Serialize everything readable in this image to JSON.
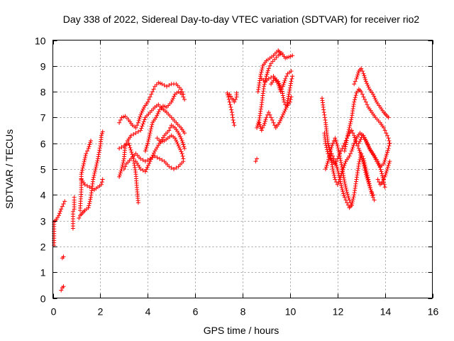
{
  "chart_data": {
    "type": "scatter",
    "title": "Day 338 of 2022, Sidereal Day-to-day VTEC variation (SDTVAR) for receiver rio2",
    "xlabel": "GPS time / hours",
    "ylabel": "SDTVAR / TECUs",
    "xlim": [
      0,
      16
    ],
    "ylim": [
      0,
      10
    ],
    "xticks": [
      0,
      2,
      4,
      6,
      8,
      10,
      12,
      14,
      16
    ],
    "yticks": [
      0,
      1,
      2,
      3,
      4,
      5,
      6,
      7,
      8,
      9,
      10
    ],
    "grid": true,
    "marker": "+",
    "color": "#ff0000",
    "tracks": [
      [
        [
          0.05,
          2.05
        ],
        [
          0.05,
          2.95
        ],
        [
          0.15,
          3.05
        ],
        [
          0.25,
          3.2
        ],
        [
          0.35,
          3.45
        ],
        [
          0.45,
          3.65
        ],
        [
          0.5,
          3.75
        ]
      ],
      [
        [
          0.35,
          0.3
        ],
        [
          0.4,
          0.4
        ],
        [
          0.45,
          0.45
        ]
      ],
      [
        [
          0.4,
          1.55
        ],
        [
          0.45,
          1.6
        ]
      ],
      [
        [
          0.85,
          2.7
        ],
        [
          0.85,
          3.35
        ],
        [
          0.9,
          3.45
        ],
        [
          0.9,
          3.8
        ],
        [
          0.9,
          3.9
        ]
      ],
      [
        [
          1.1,
          3.1
        ],
        [
          1.15,
          3.2
        ],
        [
          1.25,
          3.3
        ],
        [
          1.35,
          3.4
        ],
        [
          1.5,
          3.5
        ],
        [
          1.6,
          3.9
        ],
        [
          1.7,
          4.6
        ],
        [
          1.8,
          5.0
        ],
        [
          1.9,
          5.4
        ],
        [
          2.0,
          5.9
        ],
        [
          2.05,
          6.3
        ],
        [
          2.1,
          6.45
        ]
      ],
      [
        [
          1.15,
          3.4
        ],
        [
          1.2,
          4.2
        ],
        [
          1.2,
          4.8
        ],
        [
          1.3,
          5.2
        ],
        [
          1.4,
          5.6
        ],
        [
          1.5,
          5.8
        ],
        [
          1.6,
          6.1
        ]
      ],
      [
        [
          1.2,
          4.6
        ],
        [
          1.35,
          4.4
        ],
        [
          1.55,
          4.3
        ],
        [
          1.75,
          4.2
        ],
        [
          1.9,
          4.3
        ],
        [
          2.05,
          4.4
        ],
        [
          2.1,
          4.6
        ]
      ],
      [
        [
          2.8,
          4.7
        ],
        [
          2.9,
          5.0
        ],
        [
          3.0,
          5.4
        ],
        [
          3.05,
          5.9
        ],
        [
          3.15,
          6.1
        ],
        [
          3.3,
          6.3
        ],
        [
          3.5,
          6.4
        ],
        [
          3.7,
          6.5
        ],
        [
          3.9,
          7.0
        ],
        [
          4.1,
          7.2
        ],
        [
          4.3,
          7.4
        ],
        [
          4.45,
          7.5
        ],
        [
          4.6,
          7.35
        ],
        [
          4.8,
          7.2
        ],
        [
          5.0,
          7.0
        ],
        [
          5.2,
          6.8
        ],
        [
          5.4,
          6.6
        ],
        [
          5.55,
          6.4
        ]
      ],
      [
        [
          2.8,
          5.8
        ],
        [
          3.0,
          5.9
        ],
        [
          3.2,
          6.0
        ],
        [
          3.4,
          5.4
        ],
        [
          3.5,
          4.8
        ],
        [
          3.55,
          4.2
        ],
        [
          3.6,
          3.7
        ]
      ],
      [
        [
          2.8,
          6.8
        ],
        [
          2.9,
          7.0
        ],
        [
          3.05,
          7.05
        ],
        [
          3.2,
          6.9
        ],
        [
          3.35,
          6.7
        ],
        [
          3.5,
          6.6
        ],
        [
          3.6,
          6.8
        ],
        [
          3.7,
          7.1
        ],
        [
          3.85,
          7.4
        ],
        [
          4.0,
          7.6
        ],
        [
          4.1,
          7.8
        ],
        [
          4.2,
          8.0
        ],
        [
          4.3,
          8.2
        ],
        [
          4.45,
          8.35
        ],
        [
          4.6,
          8.3
        ],
        [
          4.8,
          8.2
        ],
        [
          5.0,
          8.3
        ],
        [
          5.2,
          8.3
        ],
        [
          5.4,
          8.1
        ],
        [
          5.5,
          7.9
        ]
      ],
      [
        [
          3.0,
          5.0
        ],
        [
          3.1,
          5.2
        ],
        [
          3.3,
          5.4
        ],
        [
          3.5,
          5.6
        ],
        [
          3.7,
          5.4
        ],
        [
          3.9,
          5.3
        ],
        [
          4.1,
          5.4
        ],
        [
          4.3,
          5.5
        ],
        [
          4.5,
          5.4
        ],
        [
          4.7,
          5.3
        ],
        [
          4.9,
          5.1
        ],
        [
          5.1,
          5.0
        ],
        [
          5.3,
          5.1
        ],
        [
          5.5,
          5.3
        ]
      ],
      [
        [
          3.5,
          5.3
        ],
        [
          3.7,
          5.0
        ],
        [
          3.9,
          4.9
        ],
        [
          4.1,
          5.3
        ],
        [
          4.3,
          5.7
        ],
        [
          4.5,
          6.0
        ],
        [
          4.7,
          6.3
        ],
        [
          4.9,
          6.5
        ],
        [
          5.0,
          6.7
        ],
        [
          5.15,
          6.6
        ],
        [
          5.3,
          6.4
        ],
        [
          5.45,
          6.1
        ],
        [
          5.55,
          5.8
        ]
      ],
      [
        [
          3.9,
          5.7
        ],
        [
          4.0,
          6.0
        ],
        [
          4.1,
          6.4
        ],
        [
          4.2,
          6.8
        ],
        [
          4.35,
          7.0
        ],
        [
          4.5,
          7.3
        ],
        [
          4.65,
          7.45
        ],
        [
          4.8,
          7.4
        ],
        [
          5.0,
          7.6
        ],
        [
          5.15,
          7.9
        ],
        [
          5.3,
          8.0
        ],
        [
          5.45,
          7.9
        ],
        [
          5.55,
          7.7
        ]
      ],
      [
        [
          4.4,
          6.2
        ],
        [
          4.55,
          6.05
        ],
        [
          4.7,
          6.1
        ],
        [
          4.85,
          6.2
        ],
        [
          5.0,
          6.3
        ],
        [
          5.15,
          6.2
        ],
        [
          5.3,
          5.9
        ],
        [
          5.45,
          5.6
        ],
        [
          5.5,
          5.4
        ]
      ],
      [
        [
          7.35,
          7.95
        ],
        [
          7.4,
          7.8
        ],
        [
          7.45,
          7.6
        ],
        [
          7.5,
          7.4
        ],
        [
          7.55,
          7.2
        ],
        [
          7.6,
          6.9
        ],
        [
          7.65,
          6.7
        ]
      ],
      [
        [
          7.45,
          7.9
        ],
        [
          7.55,
          7.75
        ],
        [
          7.65,
          7.6
        ],
        [
          7.75,
          7.8
        ],
        [
          7.75,
          7.95
        ]
      ],
      [
        [
          8.55,
          5.3
        ],
        [
          8.6,
          5.4
        ]
      ],
      [
        [
          8.6,
          6.6
        ],
        [
          8.7,
          6.9
        ],
        [
          8.8,
          7.5
        ],
        [
          8.9,
          8.2
        ],
        [
          9.0,
          8.6
        ],
        [
          9.1,
          8.9
        ],
        [
          9.2,
          9.1
        ],
        [
          9.35,
          9.25
        ],
        [
          9.5,
          9.4
        ],
        [
          9.65,
          9.5
        ],
        [
          9.8,
          9.3
        ],
        [
          9.95,
          9.35
        ],
        [
          10.1,
          9.4
        ]
      ],
      [
        [
          8.65,
          8.0
        ],
        [
          8.75,
          8.6
        ],
        [
          8.85,
          9.0
        ],
        [
          9.0,
          9.2
        ],
        [
          9.15,
          9.3
        ],
        [
          9.3,
          9.4
        ],
        [
          9.5,
          9.6
        ],
        [
          9.6,
          9.5
        ]
      ],
      [
        [
          8.7,
          6.8
        ],
        [
          8.8,
          6.5
        ],
        [
          8.9,
          6.7
        ],
        [
          9.0,
          7.0
        ],
        [
          9.1,
          7.2
        ],
        [
          9.2,
          7.0
        ],
        [
          9.3,
          6.8
        ],
        [
          9.4,
          6.6
        ],
        [
          9.55,
          6.8
        ],
        [
          9.7,
          7.1
        ],
        [
          9.85,
          7.4
        ],
        [
          10.0,
          7.6
        ],
        [
          10.05,
          7.8
        ]
      ],
      [
        [
          8.8,
          8.5
        ],
        [
          8.95,
          8.4
        ],
        [
          9.1,
          8.5
        ],
        [
          9.3,
          8.6
        ],
        [
          9.5,
          8.4
        ],
        [
          9.65,
          8.1
        ],
        [
          9.75,
          7.6
        ],
        [
          9.85,
          7.4
        ],
        [
          9.95,
          7.9
        ],
        [
          10.05,
          8.4
        ],
        [
          10.1,
          8.6
        ]
      ],
      [
        [
          9.2,
          8.3
        ],
        [
          9.35,
          8.5
        ],
        [
          9.5,
          8.3
        ],
        [
          9.6,
          8.0
        ],
        [
          9.7,
          8.2
        ],
        [
          9.8,
          8.5
        ],
        [
          9.9,
          8.7
        ],
        [
          10.05,
          8.8
        ]
      ],
      [
        [
          11.35,
          7.75
        ],
        [
          11.4,
          7.4
        ],
        [
          11.45,
          7.1
        ],
        [
          11.5,
          6.8
        ],
        [
          11.55,
          6.4
        ],
        [
          11.6,
          6.0
        ],
        [
          11.7,
          5.7
        ],
        [
          11.8,
          5.5
        ],
        [
          11.9,
          5.3
        ],
        [
          12.0,
          5.0
        ],
        [
          12.1,
          4.6
        ],
        [
          12.2,
          4.2
        ],
        [
          12.3,
          3.9
        ],
        [
          12.4,
          3.7
        ],
        [
          12.5,
          3.5
        ],
        [
          12.6,
          3.6
        ],
        [
          12.7,
          4.0
        ],
        [
          12.8,
          4.6
        ],
        [
          12.9,
          5.2
        ],
        [
          13.0,
          5.6
        ],
        [
          13.1,
          5.4
        ],
        [
          13.2,
          5.0
        ],
        [
          13.3,
          4.6
        ],
        [
          13.4,
          4.2
        ],
        [
          13.5,
          3.9
        ],
        [
          13.55,
          3.8
        ]
      ],
      [
        [
          11.45,
          6.4
        ],
        [
          11.5,
          6.0
        ],
        [
          11.6,
          5.6
        ],
        [
          11.7,
          5.4
        ],
        [
          11.8,
          5.3
        ],
        [
          11.9,
          5.2
        ],
        [
          12.0,
          5.4
        ],
        [
          12.1,
          5.6
        ],
        [
          12.2,
          5.8
        ],
        [
          12.3,
          6.0
        ],
        [
          12.4,
          6.2
        ],
        [
          12.5,
          6.4
        ],
        [
          12.6,
          6.5
        ],
        [
          12.7,
          6.3
        ],
        [
          12.8,
          6.0
        ],
        [
          12.9,
          5.8
        ],
        [
          13.0,
          5.5
        ],
        [
          13.1,
          5.2
        ],
        [
          13.2,
          4.8
        ],
        [
          13.3,
          4.5
        ],
        [
          13.4,
          4.2
        ],
        [
          13.5,
          4.0
        ]
      ],
      [
        [
          11.5,
          5.0
        ],
        [
          11.6,
          5.3
        ],
        [
          11.7,
          5.7
        ],
        [
          11.8,
          6.0
        ],
        [
          11.9,
          6.2
        ],
        [
          12.0,
          5.9
        ],
        [
          12.1,
          5.5
        ],
        [
          12.2,
          5.0
        ],
        [
          12.3,
          4.5
        ],
        [
          12.4,
          4.1
        ],
        [
          12.5,
          3.8
        ],
        [
          12.6,
          3.6
        ]
      ],
      [
        [
          11.6,
          6.0
        ],
        [
          11.7,
          5.6
        ],
        [
          11.8,
          5.0
        ],
        [
          11.9,
          4.6
        ],
        [
          12.0,
          4.4
        ],
        [
          12.1,
          4.6
        ],
        [
          12.2,
          4.9
        ],
        [
          12.35,
          5.3
        ],
        [
          12.5,
          5.5
        ],
        [
          12.6,
          5.7
        ],
        [
          12.7,
          6.0
        ],
        [
          12.8,
          6.2
        ],
        [
          12.95,
          6.4
        ],
        [
          13.1,
          6.3
        ],
        [
          13.25,
          6.0
        ],
        [
          13.4,
          5.7
        ],
        [
          13.55,
          5.5
        ],
        [
          13.7,
          5.3
        ],
        [
          13.85,
          4.9
        ],
        [
          13.95,
          4.5
        ],
        [
          14.0,
          4.3
        ]
      ],
      [
        [
          12.3,
          5.7
        ],
        [
          12.4,
          6.2
        ],
        [
          12.5,
          6.6
        ],
        [
          12.6,
          7.0
        ],
        [
          12.7,
          7.6
        ],
        [
          12.8,
          7.95
        ],
        [
          12.9,
          8.1
        ],
        [
          13.0,
          8.0
        ],
        [
          13.1,
          7.8
        ],
        [
          13.2,
          7.6
        ],
        [
          13.3,
          7.4
        ],
        [
          13.45,
          7.2
        ],
        [
          13.6,
          7.0
        ],
        [
          13.8,
          6.8
        ],
        [
          13.95,
          6.6
        ],
        [
          14.05,
          6.4
        ],
        [
          14.15,
          6.2
        ],
        [
          14.2,
          6.0
        ]
      ],
      [
        [
          12.7,
          8.3
        ],
        [
          12.8,
          8.5
        ],
        [
          12.9,
          8.8
        ],
        [
          13.0,
          8.9
        ],
        [
          13.1,
          8.7
        ],
        [
          13.2,
          8.4
        ],
        [
          13.35,
          8.1
        ],
        [
          13.5,
          7.9
        ],
        [
          13.65,
          7.6
        ],
        [
          13.8,
          7.4
        ],
        [
          13.95,
          7.2
        ],
        [
          14.05,
          7.1
        ],
        [
          14.15,
          7.0
        ]
      ],
      [
        [
          12.9,
          6.0
        ],
        [
          13.05,
          6.3
        ],
        [
          13.2,
          6.1
        ],
        [
          13.35,
          5.8
        ],
        [
          13.5,
          5.6
        ],
        [
          13.65,
          5.3
        ],
        [
          13.8,
          5.1
        ],
        [
          13.95,
          5.2
        ],
        [
          14.05,
          5.5
        ],
        [
          14.15,
          5.8
        ],
        [
          14.2,
          6.0
        ]
      ],
      [
        [
          13.7,
          4.6
        ],
        [
          13.8,
          4.4
        ],
        [
          13.9,
          4.5
        ],
        [
          14.0,
          4.7
        ],
        [
          14.1,
          5.0
        ],
        [
          14.2,
          5.3
        ]
      ]
    ]
  }
}
